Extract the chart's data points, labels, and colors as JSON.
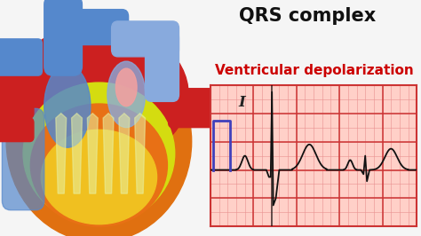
{
  "title": "QRS complex",
  "subtitle": "Ventricular depolarization",
  "title_color": "#111111",
  "subtitle_color": "#cc0000",
  "title_fontsize": 15,
  "subtitle_fontsize": 11,
  "bg_color": "#f5f5f5",
  "ecg_panel_bg": "#ffd0c8",
  "ecg_grid_major_color": "#cc3333",
  "ecg_grid_minor_color": "#e89090",
  "ecg_line_color": "#111111",
  "ecg_box_color": "#4040bb",
  "ecg_label_color": "#222222",
  "heart_orange": "#e07010",
  "heart_red": "#cc2020",
  "heart_blue": "#5588cc",
  "heart_yellow": "#c8d820",
  "heart_pink": "#f0a0a0",
  "heart_lt_blue": "#88aadd"
}
